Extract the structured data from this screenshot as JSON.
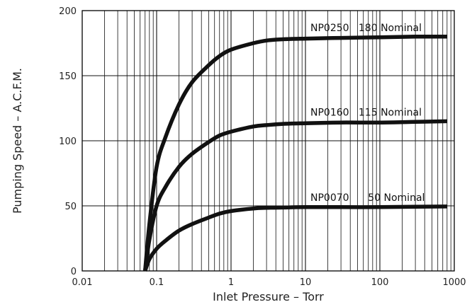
{
  "chart_data": {
    "type": "line",
    "title": "",
    "xlabel": "Inlet Pressure – Torr",
    "ylabel": "Pumping Speed – A.C.F.M.",
    "x_scale": "log",
    "xlim": [
      0.01,
      1000
    ],
    "ylim": [
      0,
      200
    ],
    "x_ticks": [
      "0.01",
      "0.1",
      "1",
      "10",
      "100",
      "1000"
    ],
    "y_ticks": [
      "0",
      "50",
      "100",
      "150",
      "200"
    ],
    "grid": true,
    "series": [
      {
        "name": "NP0250   180 Nominal",
        "x": [
          0.07,
          0.08,
          0.1,
          0.13,
          0.2,
          0.3,
          0.5,
          0.7,
          1,
          2,
          3,
          5,
          10,
          30,
          100,
          300,
          800
        ],
        "y": [
          0,
          36,
          80,
          102,
          128,
          145,
          158,
          165,
          170,
          175,
          177,
          178,
          178.5,
          179,
          179.5,
          180,
          180
        ]
      },
      {
        "name": "NP0160   115 Nominal",
        "x": [
          0.07,
          0.08,
          0.1,
          0.13,
          0.2,
          0.3,
          0.5,
          0.7,
          1,
          2,
          3,
          5,
          10,
          30,
          100,
          300,
          800
        ],
        "y": [
          0,
          24,
          50,
          64,
          80,
          90,
          99,
          104,
          107,
          111,
          112,
          113,
          113.5,
          114,
          114,
          114.5,
          115
        ]
      },
      {
        "name": "NP0070      50 Nominal",
        "x": [
          0.07,
          0.08,
          0.1,
          0.13,
          0.2,
          0.3,
          0.5,
          0.7,
          1,
          2,
          3,
          5,
          10,
          30,
          100,
          300,
          800
        ],
        "y": [
          0,
          9,
          17,
          23,
          31,
          36,
          41,
          44,
          46,
          48,
          48.5,
          48.7,
          49,
          49,
          49,
          49.3,
          49.5
        ]
      }
    ]
  }
}
